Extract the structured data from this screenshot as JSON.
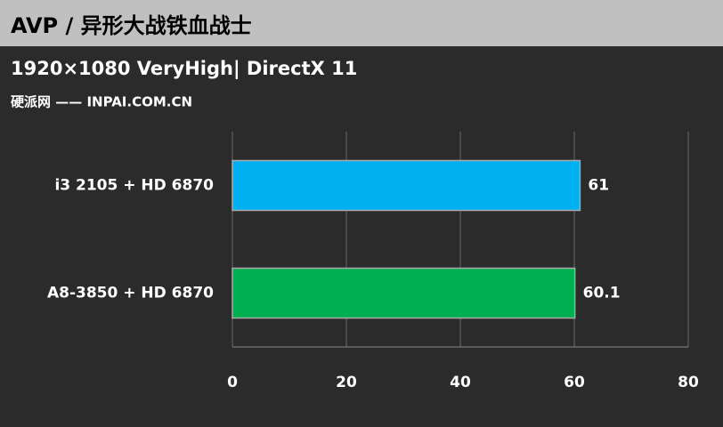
{
  "chart_data": {
    "type": "hbar",
    "title": "AVP / 异形大战铁血战士",
    "subtitle": "1920×1080 VeryHigh| DirectX 11",
    "source": "硬派网 —— INPAI.COM.CN",
    "categories": [
      "i3 2105 + HD 6870",
      "A8-3850 + HD 6870"
    ],
    "values": [
      61,
      60.1
    ],
    "colors": [
      "#00b0f0",
      "#00b050"
    ],
    "xlim": [
      0,
      80
    ],
    "xticks": [
      0,
      20,
      40,
      60,
      80
    ],
    "grid": true
  }
}
